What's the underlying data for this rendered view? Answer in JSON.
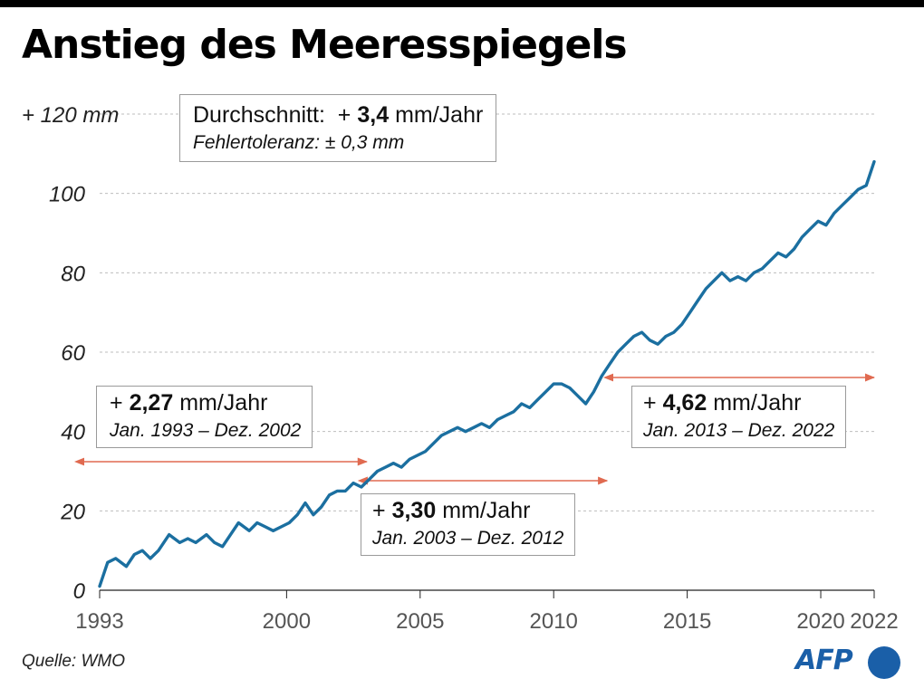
{
  "title": "Anstieg des Meeresspiegels",
  "source": "Quelle: WMO",
  "logo": "AFP",
  "average": {
    "label": "Durchschnitt:",
    "prefix": "+",
    "value": "3,4",
    "unit": "mm/Jahr",
    "tolerance": "Fehlertoleranz: ± 0,3 mm"
  },
  "periods": [
    {
      "prefix": "+",
      "value": "2,27",
      "unit": "mm/Jahr",
      "range": "Jan. 1993 – Dez. 2002",
      "from": 1993.0,
      "to": 2003.0
    },
    {
      "prefix": "+",
      "value": "3,30",
      "unit": "mm/Jahr",
      "range": "Jan. 2003 – Dez. 2012",
      "from": 2003.0,
      "to": 2012.0
    },
    {
      "prefix": "+",
      "value": "4,62",
      "unit": "mm/Jahr",
      "range": "Jan. 2013 – Dez. 2022",
      "from": 2012.2,
      "to": 2022.0
    }
  ],
  "colors": {
    "line": "#1b6fa0",
    "arrow": "#e06a50",
    "grid": "#bdbdbd"
  },
  "chart_data": {
    "type": "line",
    "title": "Anstieg des Meeresspiegels",
    "xlabel": "",
    "ylabel": "",
    "xlim": [
      1993,
      2022
    ],
    "ylim": [
      0,
      120
    ],
    "x_ticks": [
      1993,
      2000,
      2005,
      2010,
      2015,
      2020,
      2022
    ],
    "y_ticks": [
      0,
      20,
      40,
      60,
      80,
      100,
      120
    ],
    "y_tick_labels": [
      "0",
      "20",
      "40",
      "60",
      "80",
      "100",
      "+ 120 mm"
    ],
    "grid": true,
    "series": [
      {
        "name": "",
        "x": [
          1993.0,
          1993.3,
          1993.6,
          1994.0,
          1994.3,
          1994.6,
          1994.9,
          1995.2,
          1995.6,
          1996.0,
          1996.3,
          1996.6,
          1997.0,
          1997.3,
          1997.6,
          1997.9,
          1998.2,
          1998.6,
          1998.9,
          1999.2,
          1999.5,
          1999.8,
          2000.1,
          2000.4,
          2000.7,
          2001.0,
          2001.3,
          2001.6,
          2001.9,
          2002.2,
          2002.5,
          2002.8,
          2003.1,
          2003.4,
          2003.7,
          2004.0,
          2004.3,
          2004.6,
          2004.9,
          2005.2,
          2005.5,
          2005.8,
          2006.1,
          2006.4,
          2006.7,
          2007.0,
          2007.3,
          2007.6,
          2007.9,
          2008.2,
          2008.5,
          2008.8,
          2009.1,
          2009.4,
          2009.7,
          2010.0,
          2010.3,
          2010.6,
          2010.9,
          2011.2,
          2011.5,
          2011.8,
          2012.1,
          2012.4,
          2012.7,
          2013.0,
          2013.3,
          2013.6,
          2013.9,
          2014.2,
          2014.5,
          2014.8,
          2015.1,
          2015.4,
          2015.7,
          2016.0,
          2016.3,
          2016.6,
          2016.9,
          2017.2,
          2017.5,
          2017.8,
          2018.1,
          2018.4,
          2018.7,
          2019.0,
          2019.3,
          2019.6,
          2019.9,
          2020.2,
          2020.5,
          2020.8,
          2021.1,
          2021.4,
          2021.7,
          2022.0
        ],
        "values": [
          1,
          7,
          8,
          6,
          9,
          10,
          8,
          10,
          14,
          12,
          13,
          12,
          14,
          12,
          11,
          14,
          17,
          15,
          17,
          16,
          15,
          16,
          17,
          19,
          22,
          19,
          21,
          24,
          25,
          25,
          27,
          26,
          28,
          30,
          31,
          32,
          31,
          33,
          34,
          35,
          37,
          39,
          40,
          41,
          40,
          41,
          42,
          41,
          43,
          44,
          45,
          47,
          46,
          48,
          50,
          52,
          52,
          51,
          49,
          47,
          50,
          54,
          57,
          60,
          62,
          64,
          65,
          63,
          62,
          64,
          65,
          67,
          70,
          73,
          76,
          78,
          80,
          78,
          79,
          78,
          80,
          81,
          83,
          85,
          84,
          86,
          89,
          91,
          93,
          92,
          95,
          97,
          99,
          101,
          102,
          108
        ]
      }
    ]
  }
}
